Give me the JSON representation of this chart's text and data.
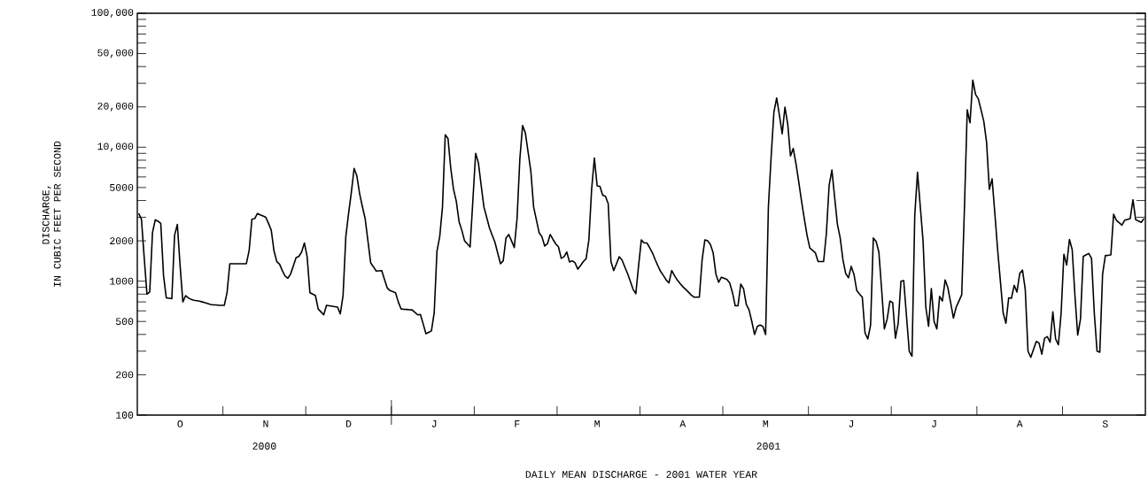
{
  "chart_data": {
    "type": "line",
    "log": true,
    "xlabel": "DAILY MEAN DISCHARGE - 2001 WATER YEAR",
    "ylabel": "DISCHARGE, IN CUBIC FEET PER SECOND",
    "color": "#000000",
    "ylim": [
      100,
      100000
    ],
    "yticks": [
      {
        "value": 100,
        "label": "100"
      },
      {
        "value": 200,
        "label": "200"
      },
      {
        "value": 300,
        "label": null
      },
      {
        "value": 400,
        "label": null
      },
      {
        "value": 500,
        "label": "500"
      },
      {
        "value": 600,
        "label": null
      },
      {
        "value": 700,
        "label": null
      },
      {
        "value": 800,
        "label": null
      },
      {
        "value": 900,
        "label": null
      },
      {
        "value": 1000,
        "label": "1000"
      },
      {
        "value": 2000,
        "label": "2000"
      },
      {
        "value": 3000,
        "label": null
      },
      {
        "value": 4000,
        "label": null
      },
      {
        "value": 5000,
        "label": "5000"
      },
      {
        "value": 6000,
        "label": null
      },
      {
        "value": 7000,
        "label": null
      },
      {
        "value": 8000,
        "label": null
      },
      {
        "value": 9000,
        "label": null
      },
      {
        "value": 10000,
        "label": "10,000"
      },
      {
        "value": 20000,
        "label": "20,000"
      },
      {
        "value": 30000,
        "label": null
      },
      {
        "value": 40000,
        "label": null
      },
      {
        "value": 50000,
        "label": "50,000"
      },
      {
        "value": 60000,
        "label": null
      },
      {
        "value": 70000,
        "label": null
      },
      {
        "value": 80000,
        "label": null
      },
      {
        "value": 90000,
        "label": null
      },
      {
        "value": 100000,
        "label": "100,000"
      }
    ],
    "annotations": [
      "2000",
      "2001"
    ],
    "categories": [
      null,
      null,
      null,
      null,
      null,
      null,
      null,
      null,
      null,
      null,
      null,
      null,
      null,
      null,
      null,
      "O",
      null,
      null,
      null,
      null,
      null,
      null,
      null,
      null,
      null,
      null,
      null,
      null,
      null,
      null,
      null,
      null,
      null,
      null,
      null,
      null,
      null,
      null,
      null,
      null,
      null,
      null,
      null,
      null,
      null,
      null,
      "N",
      null,
      null,
      null,
      null,
      null,
      null,
      null,
      null,
      null,
      null,
      null,
      null,
      null,
      null,
      null,
      null,
      null,
      null,
      null,
      null,
      null,
      null,
      null,
      null,
      null,
      null,
      null,
      null,
      null,
      "D",
      null,
      null,
      null,
      null,
      null,
      null,
      null,
      null,
      null,
      null,
      null,
      null,
      null,
      null,
      null,
      null,
      null,
      null,
      null,
      null,
      null,
      null,
      null,
      null,
      null,
      null,
      null,
      null,
      null,
      null,
      "J",
      null,
      null,
      null,
      null,
      null,
      null,
      null,
      null,
      null,
      null,
      null,
      null,
      null,
      null,
      null,
      null,
      null,
      null,
      null,
      null,
      null,
      null,
      null,
      null,
      null,
      null,
      null,
      null,
      null,
      "F",
      null,
      null,
      null,
      null,
      null,
      null,
      null,
      null,
      null,
      null,
      null,
      null,
      null,
      null,
      null,
      null,
      null,
      null,
      null,
      null,
      null,
      null,
      null,
      null,
      null,
      null,
      null,
      null,
      "M",
      null,
      null,
      null,
      null,
      null,
      null,
      null,
      null,
      null,
      null,
      null,
      null,
      null,
      null,
      null,
      null,
      null,
      null,
      null,
      null,
      null,
      null,
      null,
      null,
      null,
      null,
      null,
      null,
      null,
      null,
      "A",
      null,
      null,
      null,
      null,
      null,
      null,
      null,
      null,
      null,
      null,
      null,
      null,
      null,
      null,
      null,
      null,
      null,
      null,
      null,
      null,
      null,
      null,
      null,
      null,
      null,
      null,
      null,
      null,
      null,
      "M",
      null,
      null,
      null,
      null,
      null,
      null,
      null,
      null,
      null,
      null,
      null,
      null,
      null,
      null,
      null,
      null,
      null,
      null,
      null,
      null,
      null,
      null,
      null,
      null,
      null,
      null,
      null,
      null,
      null,
      null,
      "J",
      null,
      null,
      null,
      null,
      null,
      null,
      null,
      null,
      null,
      null,
      null,
      null,
      null,
      null,
      null,
      null,
      null,
      null,
      null,
      null,
      null,
      null,
      null,
      null,
      null,
      null,
      null,
      null,
      null,
      "J",
      null,
      null,
      null,
      null,
      null,
      null,
      null,
      null,
      null,
      null,
      null,
      null,
      null,
      null,
      null,
      null,
      null,
      null,
      null,
      null,
      null,
      null,
      null,
      null,
      null,
      null,
      null,
      null,
      null,
      null,
      "A",
      null,
      null,
      null,
      null,
      null,
      null,
      null,
      null,
      null,
      null,
      null,
      null,
      null,
      null,
      null,
      null,
      null,
      null,
      null,
      null,
      null,
      null,
      null,
      null,
      null,
      null,
      null,
      null,
      null,
      null,
      "S",
      null,
      null,
      null,
      null,
      null,
      null,
      null,
      null,
      null,
      null,
      null,
      null,
      null,
      null
    ],
    "values": [
      3200,
      2900,
      1500,
      800,
      830,
      2300,
      2870,
      2800,
      2700,
      1100,
      750,
      745,
      740,
      2200,
      2650,
      1300,
      700,
      780,
      750,
      730,
      720,
      715,
      710,
      700,
      690,
      680,
      670,
      665,
      665,
      660,
      660,
      660,
      820,
      1350,
      1350,
      1350,
      1350,
      1350,
      1350,
      1350,
      1700,
      2900,
      2930,
      3200,
      3130,
      3070,
      3000,
      2700,
      2400,
      1680,
      1400,
      1340,
      1200,
      1090,
      1050,
      1130,
      1300,
      1500,
      1530,
      1650,
      1930,
      1520,
      820,
      800,
      780,
      620,
      590,
      560,
      660,
      655,
      650,
      645,
      640,
      570,
      780,
      2150,
      3200,
      4600,
      6950,
      6100,
      4500,
      3600,
      2930,
      2000,
      1370,
      1280,
      1190,
      1195,
      1200,
      1030,
      890,
      850,
      835,
      820,
      700,
      620,
      617,
      615,
      612,
      610,
      585,
      560,
      565,
      480,
      405,
      415,
      425,
      580,
      1670,
      2150,
      3580,
      12400,
      11600,
      6950,
      4850,
      3950,
      2780,
      2400,
      2000,
      1900,
      1800,
      4000,
      9000,
      7650,
      5200,
      3580,
      3000,
      2500,
      2200,
      1950,
      1620,
      1350,
      1420,
      2100,
      2230,
      2000,
      1780,
      2930,
      8100,
      14500,
      12800,
      9200,
      6600,
      3580,
      2870,
      2300,
      2150,
      1830,
      1900,
      2230,
      2050,
      1900,
      1800,
      1480,
      1520,
      1650,
      1390,
      1420,
      1370,
      1230,
      1310,
      1400,
      1470,
      2030,
      4850,
      8300,
      5150,
      5100,
      4380,
      4300,
      3800,
      1400,
      1200,
      1350,
      1520,
      1440,
      1280,
      1140,
      1000,
      870,
      805,
      1300,
      2030,
      1930,
      1930,
      1780,
      1630,
      1450,
      1300,
      1180,
      1100,
      1020,
      970,
      1200,
      1100,
      1020,
      960,
      910,
      870,
      830,
      790,
      760,
      760,
      760,
      1440,
      2030,
      2000,
      1880,
      1630,
      1130,
      980,
      1070,
      1050,
      1030,
      970,
      820,
      655,
      655,
      950,
      880,
      670,
      610,
      500,
      400,
      460,
      470,
      460,
      400,
      3580,
      8500,
      18300,
      23300,
      17300,
      12600,
      19900,
      14900,
      8600,
      9800,
      7500,
      5500,
      3970,
      2930,
      2200,
      1770,
      1700,
      1630,
      1400,
      1400,
      1400,
      2280,
      5200,
      6750,
      4200,
      2650,
      2100,
      1440,
      1140,
      1060,
      1290,
      1120,
      850,
      800,
      760,
      410,
      370,
      470,
      2100,
      1980,
      1650,
      870,
      440,
      520,
      710,
      690,
      375,
      485,
      1000,
      1010,
      550,
      300,
      275,
      3100,
      6500,
      3600,
      2000,
      640,
      460,
      880,
      500,
      440,
      770,
      710,
      1020,
      890,
      690,
      530,
      640,
      710,
      790,
      3580,
      19000,
      15200,
      31700,
      24800,
      23000,
      19000,
      15600,
      10900,
      4850,
      5800,
      3200,
      1720,
      1000,
      580,
      485,
      750,
      745,
      930,
      830,
      1140,
      1210,
      870,
      300,
      270,
      310,
      355,
      345,
      285,
      375,
      385,
      350,
      590,
      370,
      335,
      580,
      1590,
      1320,
      2050,
      1720,
      780,
      395,
      520,
      1530,
      1570,
      1610,
      1480,
      580,
      300,
      295,
      1120,
      1550,
      1560,
      1570,
      3160,
      2850,
      2730,
      2620,
      2850,
      2890,
      2930,
      4050,
      2870,
      2810,
      2750,
      2930
    ]
  }
}
